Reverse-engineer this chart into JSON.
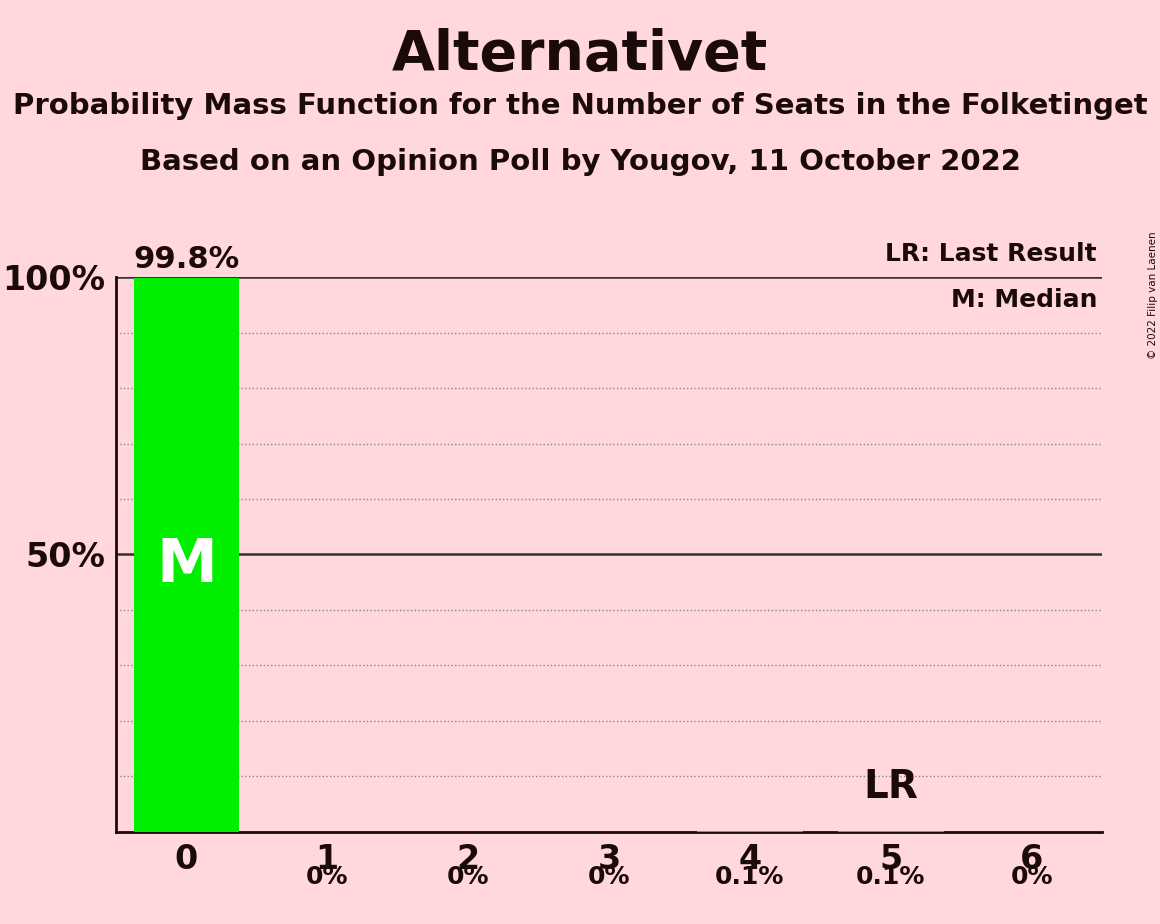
{
  "title": "Alternativet",
  "subtitle1": "Probability Mass Function for the Number of Seats in the Folketinget",
  "subtitle2": "Based on an Opinion Poll by Yougov, 11 October 2022",
  "copyright": "© 2022 Filip van Laenen",
  "background_color": "#FFD7DC",
  "bar_color": "#00EE00",
  "x_values": [
    0,
    1,
    2,
    3,
    4,
    5,
    6
  ],
  "y_values": [
    99.8,
    0.0,
    0.0,
    0.0,
    0.1,
    0.1,
    0.0
  ],
  "bar_labels": [
    "99.8%",
    "0%",
    "0%",
    "0%",
    "0.1%",
    "0.1%",
    "0%"
  ],
  "median": 0,
  "last_result": 5,
  "ylim": [
    0,
    100
  ],
  "yticks": [
    10,
    20,
    30,
    40,
    50,
    60,
    70,
    80,
    90,
    100
  ],
  "xlabel_fontsize": 24,
  "ylabel_fontsize": 24,
  "title_fontsize": 40,
  "subtitle_fontsize": 21,
  "bar_width": 0.75,
  "text_color": "#1A0A0A",
  "grid_color": "#888888",
  "solid_line_color": "#333333",
  "legend_lr": "LR: Last Result",
  "legend_m": "M: Median"
}
